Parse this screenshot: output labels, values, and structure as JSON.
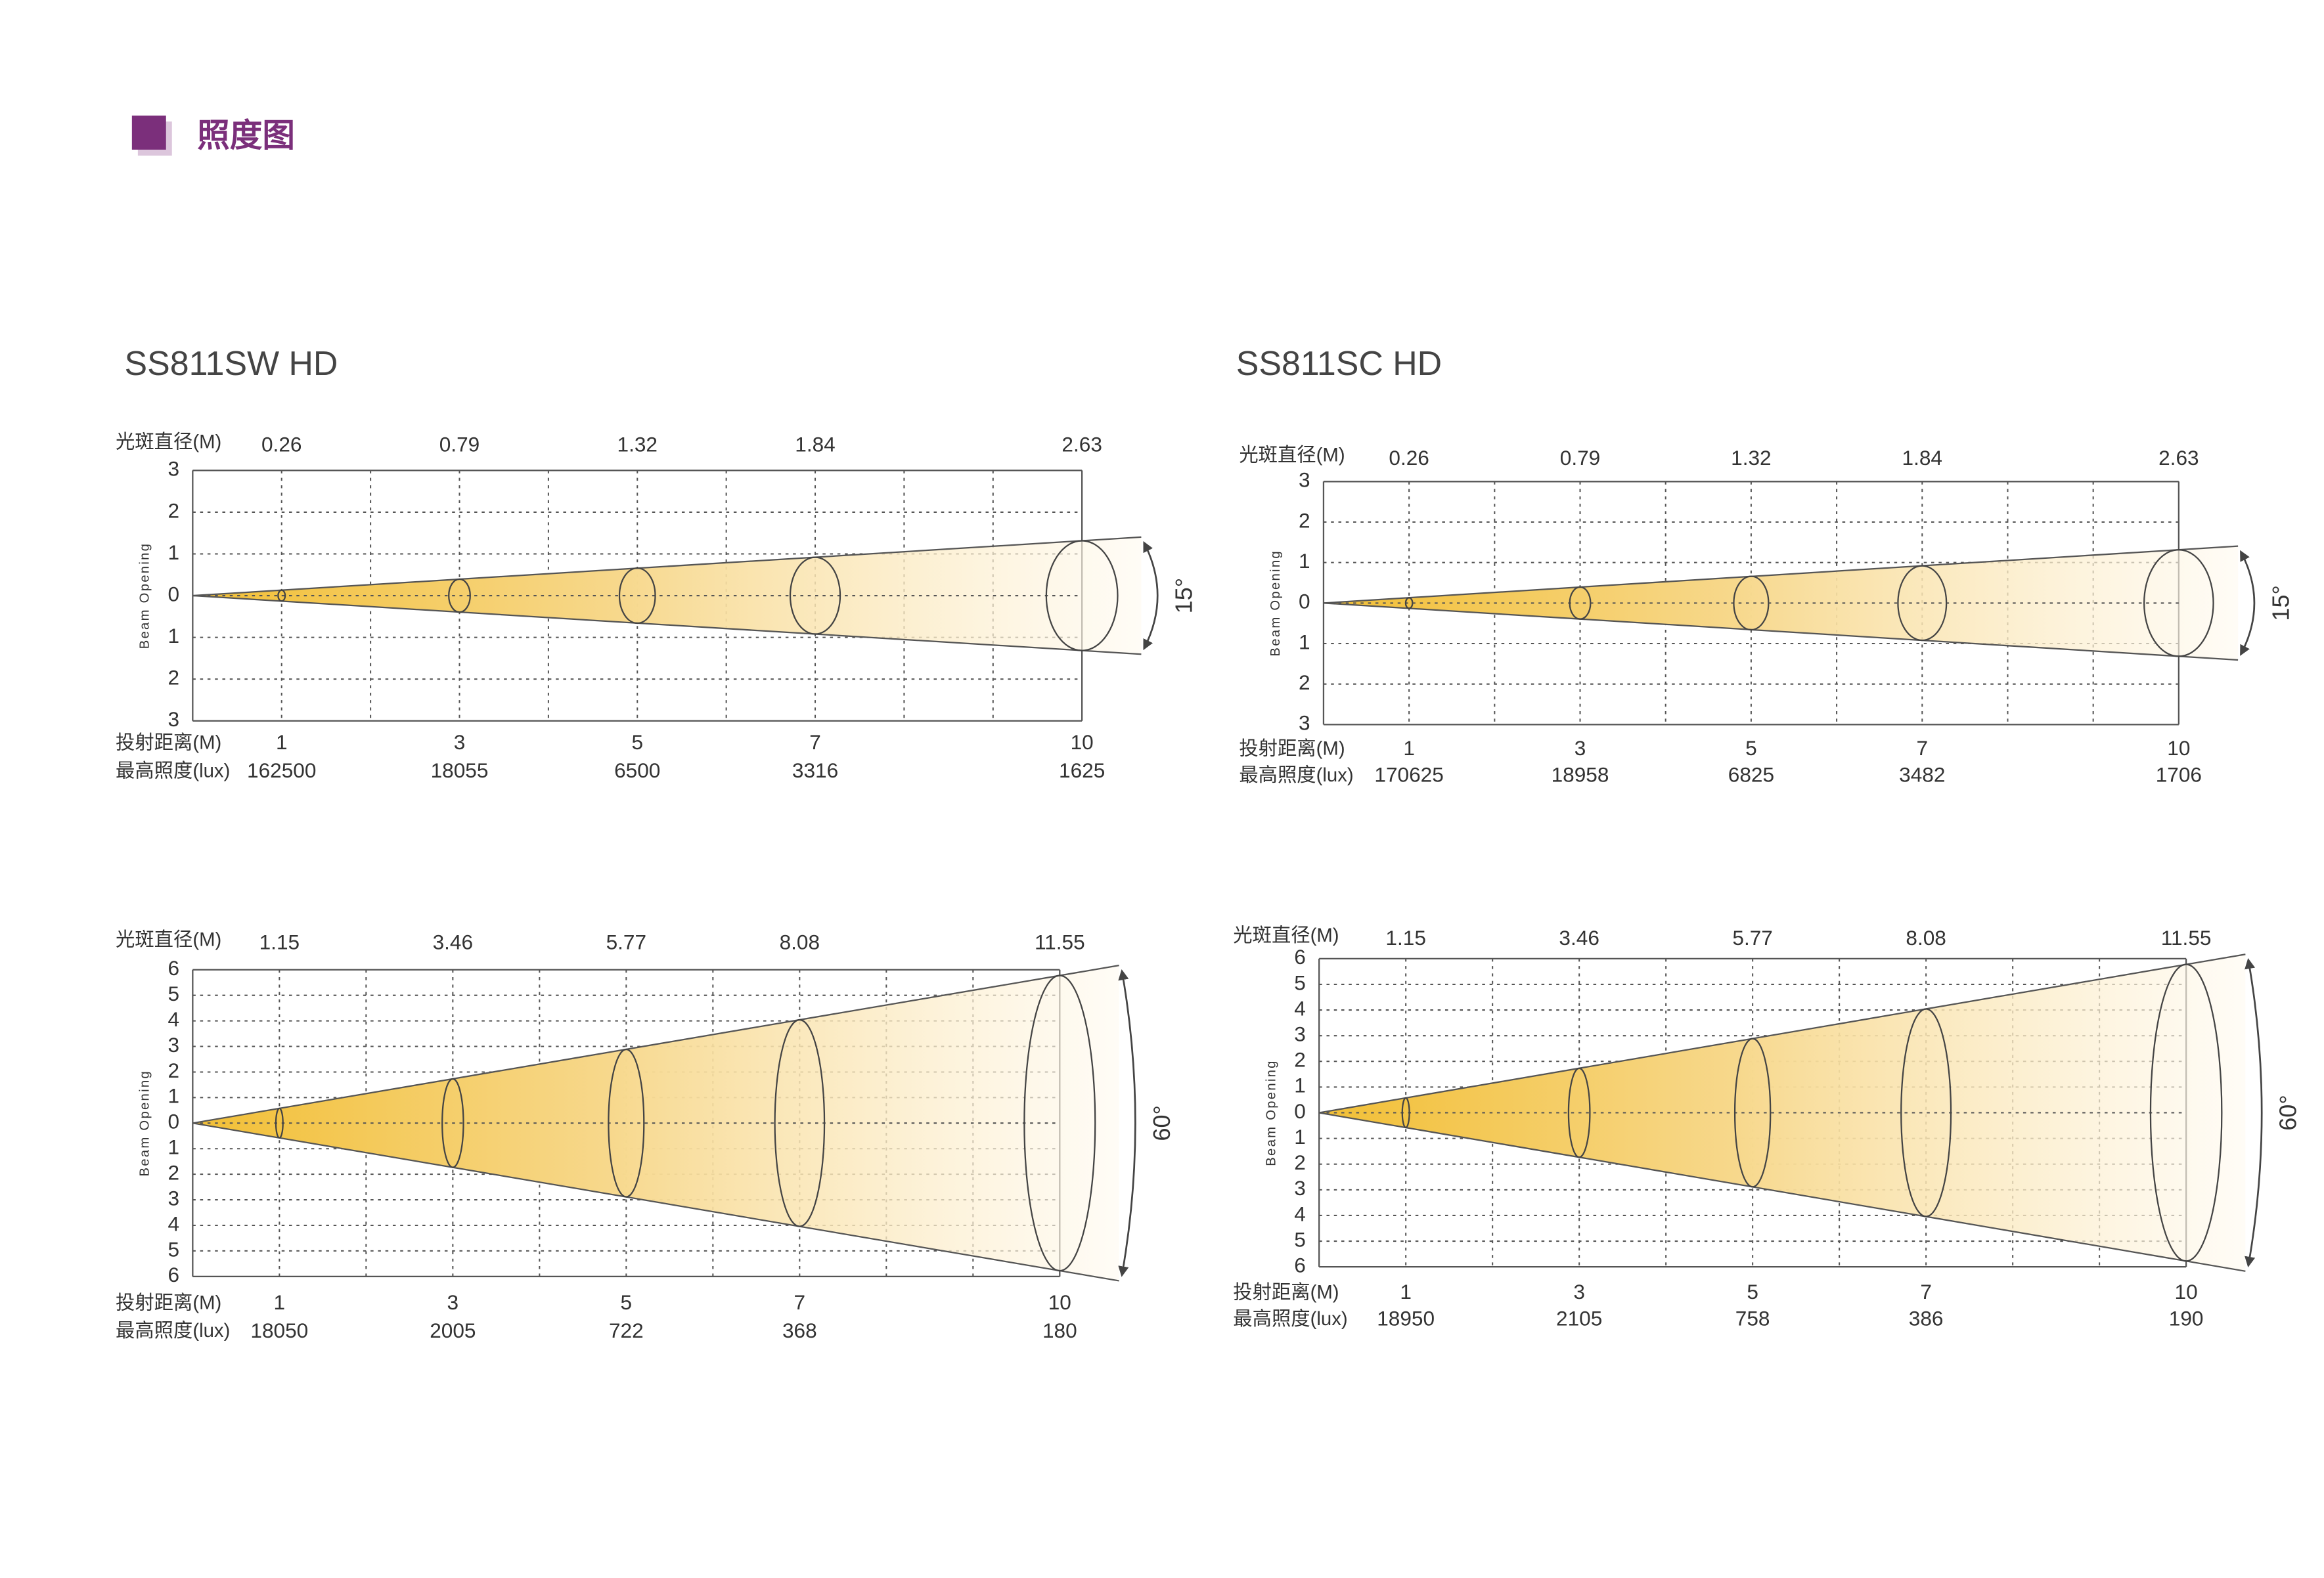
{
  "header": {
    "title": "照度图"
  },
  "panels": [
    {
      "title": "SS811SW HD",
      "diagrams": [
        {
          "diameter_label": "光斑直径(M)",
          "diameters": [
            0.26,
            0.79,
            1.32,
            1.84,
            2.63
          ],
          "axis_label": "Beam Opening",
          "yticks": [
            3,
            2,
            1,
            0,
            1,
            2,
            3
          ],
          "distance_label": "投射距离(M)",
          "distances": [
            1,
            3,
            5,
            7,
            10
          ],
          "lux_label": "最高照度(lux)",
          "lux": [
            162500,
            18055,
            6500,
            3316,
            1625
          ],
          "angle": "15°"
        },
        {
          "diameter_label": "光斑直径(M)",
          "diameters": [
            1.15,
            3.46,
            5.77,
            8.08,
            11.55
          ],
          "axis_label": "Beam Opening",
          "yticks": [
            6,
            5,
            4,
            3,
            2,
            1,
            0,
            1,
            2,
            3,
            4,
            5,
            6
          ],
          "distance_label": "投射距离(M)",
          "distances": [
            1,
            3,
            5,
            7,
            10
          ],
          "lux_label": "最高照度(lux)",
          "lux": [
            18050,
            2005,
            722,
            368,
            180
          ],
          "angle": "60°"
        }
      ]
    },
    {
      "title": "SS811SC HD",
      "diagrams": [
        {
          "diameter_label": "光斑直径(M)",
          "diameters": [
            0.26,
            0.79,
            1.32,
            1.84,
            2.63
          ],
          "axis_label": "Beam Opening",
          "yticks": [
            3,
            2,
            1,
            0,
            1,
            2,
            3
          ],
          "distance_label": "投射距离(M)",
          "distances": [
            1,
            3,
            5,
            7,
            10
          ],
          "lux_label": "最高照度(lux)",
          "lux": [
            170625,
            18958,
            6825,
            3482,
            1706
          ],
          "angle": "15°"
        },
        {
          "diameter_label": "光斑直径(M)",
          "diameters": [
            1.15,
            3.46,
            5.77,
            8.08,
            11.55
          ],
          "axis_label": "Beam Opening",
          "yticks": [
            6,
            5,
            4,
            3,
            2,
            1,
            0,
            1,
            2,
            3,
            4,
            5,
            6
          ],
          "distance_label": "投射距离(M)",
          "distances": [
            1,
            3,
            5,
            7,
            10
          ],
          "lux_label": "最高照度(lux)",
          "lux": [
            18950,
            2105,
            758,
            386,
            190
          ],
          "angle": "60°"
        }
      ]
    }
  ]
}
